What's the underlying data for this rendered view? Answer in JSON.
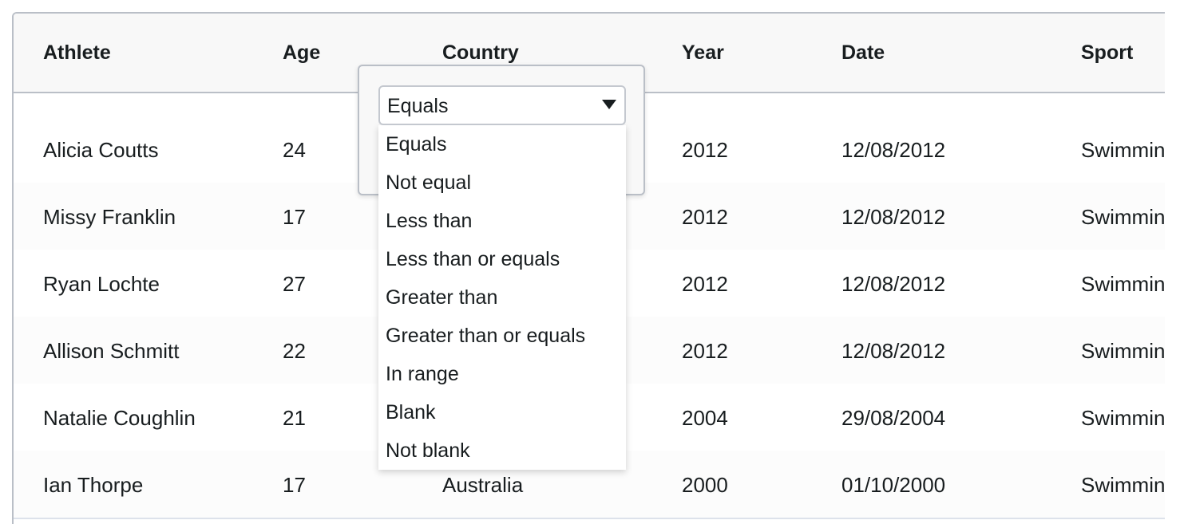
{
  "columns": [
    "Athlete",
    "Age",
    "Country",
    "Year",
    "Date",
    "Sport"
  ],
  "partial_row": [
    "",
    "",
    "",
    "",
    "",
    ""
  ],
  "rows": [
    [
      "Alicia Coutts",
      "24",
      "",
      "2012",
      "12/08/2012",
      "Swimmin"
    ],
    [
      "Missy Franklin",
      "17",
      "",
      "2012",
      "12/08/2012",
      "Swimmin"
    ],
    [
      "Ryan Lochte",
      "27",
      "",
      "2012",
      "12/08/2012",
      "Swimmin"
    ],
    [
      "Allison Schmitt",
      "22",
      "",
      "2012",
      "12/08/2012",
      "Swimmin"
    ],
    [
      "Natalie Coughlin",
      "21",
      "",
      "2004",
      "29/08/2004",
      "Swimmin"
    ],
    [
      "Ian Thorpe",
      "17",
      "Australia",
      "2000",
      "01/10/2000",
      "Swimmin"
    ]
  ],
  "filter": {
    "selected": "Equals",
    "options": [
      "Equals",
      "Not equal",
      "Less than",
      "Less than or equals",
      "Greater than",
      "Greater than or equals",
      "In range",
      "Blank",
      "Not blank"
    ]
  },
  "icons": {
    "select_caret": "caret-down-icon"
  }
}
